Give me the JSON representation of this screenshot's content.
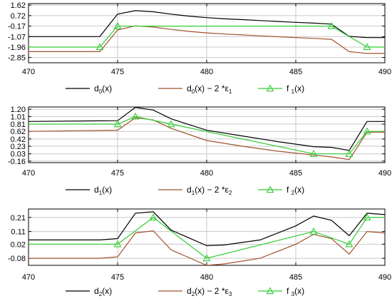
{
  "chart_data": [
    {
      "type": "line",
      "xlim": [
        470,
        490
      ],
      "xticks": [
        "470",
        "475",
        "480",
        "485",
        "490"
      ],
      "yticks": [
        "1.62",
        "0.72",
        "-0.17",
        "-1.07",
        "-1.96",
        "-2.85"
      ],
      "ylim": [
        -3.3,
        1.75
      ],
      "grid": true,
      "legend_position": "bottom",
      "legend": [
        {
          "base": "d",
          "sub": "0",
          "tail": "(x)"
        },
        {
          "base": "d",
          "sub": "0",
          "tail": "(x)  − 2 *ε",
          "sub2": "1"
        },
        {
          "base": "f ",
          "sub": "1",
          "tail": "(x)"
        }
      ],
      "series": [
        {
          "color": "#000000",
          "marker": false,
          "x": [
            470,
            474,
            475,
            476,
            477,
            478,
            479,
            480,
            481,
            482,
            483,
            484,
            485,
            486,
            487,
            488,
            489,
            490
          ],
          "y": [
            -1.07,
            -1.07,
            0.85,
            1.15,
            1.05,
            0.85,
            0.68,
            0.55,
            0.45,
            0.38,
            0.3,
            0.22,
            0.15,
            0.08,
            0.0,
            -1.05,
            -1.15,
            -1.15
          ]
        },
        {
          "color": "#a0522d",
          "marker": false,
          "x": [
            470,
            474,
            475,
            476,
            477,
            478,
            479,
            480,
            481,
            482,
            483,
            484,
            485,
            486,
            487,
            488,
            489,
            490
          ],
          "y": [
            -2.35,
            -2.35,
            -0.5,
            -0.15,
            -0.25,
            -0.45,
            -0.62,
            -0.75,
            -0.85,
            -0.92,
            -1.0,
            -1.08,
            -1.15,
            -1.22,
            -1.3,
            -2.35,
            -2.5,
            -2.5
          ]
        },
        {
          "color": "#33cc33",
          "marker": true,
          "x": [
            470,
            474,
            475,
            487,
            489,
            490
          ],
          "y": [
            -1.96,
            -1.96,
            -0.17,
            -0.17,
            -1.96,
            -1.96
          ],
          "markers": [
            474,
            475,
            487,
            489
          ]
        }
      ]
    },
    {
      "type": "line",
      "xlim": [
        470,
        490
      ],
      "xticks": [
        "470",
        "475",
        "480",
        "485",
        "490"
      ],
      "yticks": [
        "1.20",
        "1.01",
        "0.81",
        "0.62",
        "0.42",
        "0.23",
        "0.03",
        "-0.16"
      ],
      "ylim": [
        -0.2,
        1.26
      ],
      "grid": true,
      "legend_position": "bottom",
      "legend": [
        {
          "base": "d",
          "sub": "1",
          "tail": "(x)"
        },
        {
          "base": "d",
          "sub": "1",
          "tail": "(x)  − 2 *ε",
          "sub2": "2"
        },
        {
          "base": "f ",
          "sub": "2",
          "tail": "(x)"
        }
      ],
      "series": [
        {
          "color": "#000000",
          "marker": false,
          "x": [
            470,
            475,
            476,
            477,
            478,
            480,
            482,
            484,
            486,
            487,
            488,
            489,
            490
          ],
          "y": [
            0.88,
            0.9,
            1.25,
            1.18,
            0.95,
            0.65,
            0.5,
            0.35,
            0.22,
            0.2,
            0.12,
            0.88,
            0.88
          ]
        },
        {
          "color": "#a0522d",
          "marker": false,
          "x": [
            470,
            475,
            476,
            477,
            478,
            480,
            482,
            484,
            486,
            487,
            488,
            489,
            490
          ],
          "y": [
            0.62,
            0.65,
            0.98,
            0.92,
            0.7,
            0.38,
            0.23,
            0.1,
            0.0,
            -0.05,
            -0.12,
            0.6,
            0.6
          ]
        },
        {
          "color": "#33cc33",
          "marker": true,
          "x": [
            470,
            475,
            476,
            478,
            486,
            488,
            489,
            490
          ],
          "y": [
            0.81,
            0.81,
            1.01,
            0.81,
            0.03,
            0.03,
            0.62,
            0.62
          ],
          "markers": [
            475,
            476,
            478,
            486,
            488,
            489
          ]
        }
      ]
    },
    {
      "type": "line",
      "xlim": [
        470,
        490
      ],
      "xticks": [
        "470",
        "475",
        "480",
        "485",
        "490"
      ],
      "yticks": [
        "0.21",
        "0.11",
        "0.02",
        "-0.08"
      ],
      "ylim": [
        -0.13,
        0.27
      ],
      "grid": true,
      "legend_position": "bottom",
      "legend": [
        {
          "base": "d",
          "sub": "2",
          "tail": "(x)"
        },
        {
          "base": "d",
          "sub": "2",
          "tail": "(x)  − 2 *ε",
          "sub2": "3"
        },
        {
          "base": "f ",
          "sub": "3",
          "tail": "(x)"
        }
      ],
      "series": [
        {
          "color": "#000000",
          "marker": false,
          "x": [
            470,
            474,
            475,
            476,
            477,
            478,
            480,
            481,
            483,
            485,
            486,
            487,
            488,
            489,
            490
          ],
          "y": [
            0.05,
            0.05,
            0.06,
            0.24,
            0.25,
            0.12,
            0.01,
            0.015,
            0.05,
            0.15,
            0.22,
            0.19,
            0.08,
            0.24,
            0.23
          ]
        },
        {
          "color": "#a0522d",
          "marker": false,
          "x": [
            470,
            474,
            475,
            476,
            477,
            478,
            480,
            481,
            483,
            485,
            486,
            487,
            488,
            489,
            490
          ],
          "y": [
            -0.08,
            -0.08,
            -0.07,
            0.1,
            0.115,
            -0.02,
            -0.13,
            -0.12,
            -0.08,
            0.02,
            0.09,
            0.06,
            -0.05,
            0.11,
            0.1
          ]
        },
        {
          "color": "#33cc33",
          "marker": true,
          "x": [
            470,
            475,
            477,
            480,
            486,
            488,
            489,
            490
          ],
          "y": [
            0.02,
            0.02,
            0.21,
            -0.08,
            0.11,
            0.02,
            0.21,
            0.21
          ],
          "markers": [
            475,
            477,
            480,
            486,
            488,
            489
          ]
        }
      ]
    }
  ]
}
